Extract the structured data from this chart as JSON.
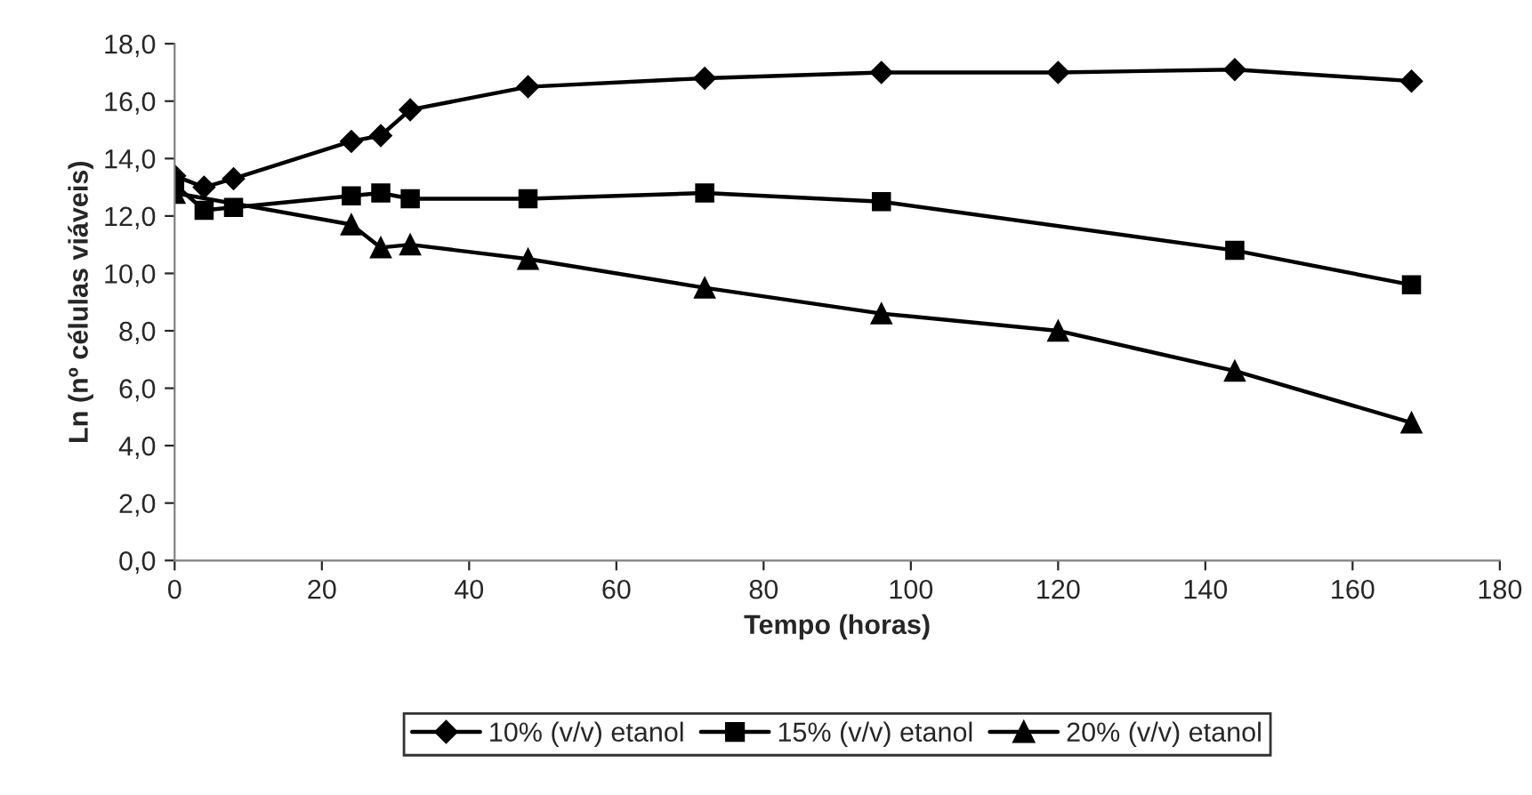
{
  "chart_data": {
    "type": "line",
    "xlabel": "Tempo (horas)",
    "ylabel": "Ln (nº células viáveis)",
    "xlim": [
      0,
      180
    ],
    "xticks": [
      0,
      20,
      40,
      60,
      80,
      100,
      120,
      140,
      160,
      180
    ],
    "ylim": [
      0,
      18
    ],
    "yticks": [
      {
        "value": 0,
        "label": "0,0"
      },
      {
        "value": 2,
        "label": "2,0"
      },
      {
        "value": 4,
        "label": "4,0"
      },
      {
        "value": 6,
        "label": "6,0"
      },
      {
        "value": 8,
        "label": "8,0"
      },
      {
        "value": 10,
        "label": "10,0"
      },
      {
        "value": 12,
        "label": "12,0"
      },
      {
        "value": 14,
        "label": "14,0"
      },
      {
        "value": 16,
        "label": "16,0"
      },
      {
        "value": 18,
        "label": "18,0"
      }
    ],
    "grid": false,
    "legend": "bottom",
    "series": [
      {
        "name": "10% (v/v) etanol",
        "color": "#000000",
        "marker": "diamond",
        "x": [
          0,
          4,
          8,
          24,
          28,
          32,
          48,
          72,
          96,
          120,
          144,
          168
        ],
        "values": [
          13.4,
          13.0,
          13.3,
          14.6,
          14.8,
          15.7,
          16.5,
          16.8,
          17.0,
          17.0,
          17.1,
          16.7
        ]
      },
      {
        "name": "15% (v/v) etanol",
        "color": "#000000",
        "marker": "square",
        "x": [
          0,
          4,
          8,
          24,
          28,
          32,
          48,
          72,
          96,
          144,
          168
        ],
        "values": [
          13.1,
          12.2,
          12.3,
          12.7,
          12.8,
          12.6,
          12.6,
          12.8,
          12.5,
          10.8,
          9.6
        ]
      },
      {
        "name": "20% (v/v) etanol",
        "color": "#000000",
        "marker": "triangle",
        "x": [
          0,
          24,
          28,
          32,
          48,
          72,
          96,
          120,
          144,
          168
        ],
        "values": [
          12.8,
          11.7,
          10.9,
          11.0,
          10.5,
          9.5,
          8.6,
          8.0,
          6.6,
          4.8
        ]
      }
    ]
  }
}
